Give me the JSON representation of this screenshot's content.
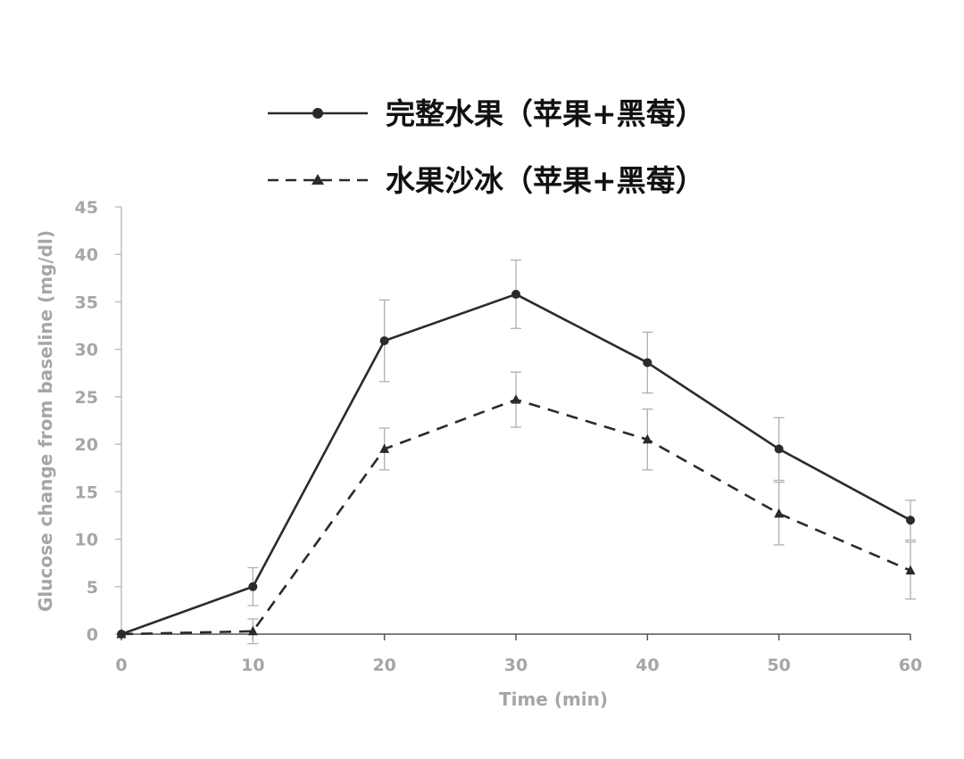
{
  "chart_data": {
    "type": "line",
    "xlabel": "Time (min)",
    "ylabel": "Glucose change from baseline (mg/dl)",
    "x": [
      0,
      10,
      20,
      30,
      40,
      50,
      60
    ],
    "xlim": [
      0,
      60
    ],
    "ylim": [
      0,
      45
    ],
    "xticks": [
      "0",
      "10",
      "20",
      "30",
      "40",
      "50",
      "60"
    ],
    "yticks": [
      "0",
      "5",
      "10",
      "15",
      "20",
      "25",
      "30",
      "35",
      "40",
      "45"
    ],
    "grid": false,
    "legend_position": "top",
    "series": [
      {
        "name": "完整水果（苹果+黑莓）",
        "values": [
          0,
          5,
          30.9,
          35.8,
          28.6,
          19.5,
          12.0
        ],
        "error": [
          0,
          2.0,
          4.3,
          3.6,
          3.2,
          3.3,
          2.1
        ],
        "line_style": "solid",
        "marker": "circle",
        "color": "#2b2b2b"
      },
      {
        "name": "水果沙冰（苹果+黑莓）",
        "values": [
          0,
          0.3,
          19.5,
          24.7,
          20.5,
          12.7,
          6.7
        ],
        "error": [
          0,
          1.3,
          2.2,
          2.9,
          3.2,
          3.3,
          3.0
        ],
        "line_style": "dashed",
        "marker": "triangle",
        "color": "#2b2b2b"
      }
    ]
  }
}
